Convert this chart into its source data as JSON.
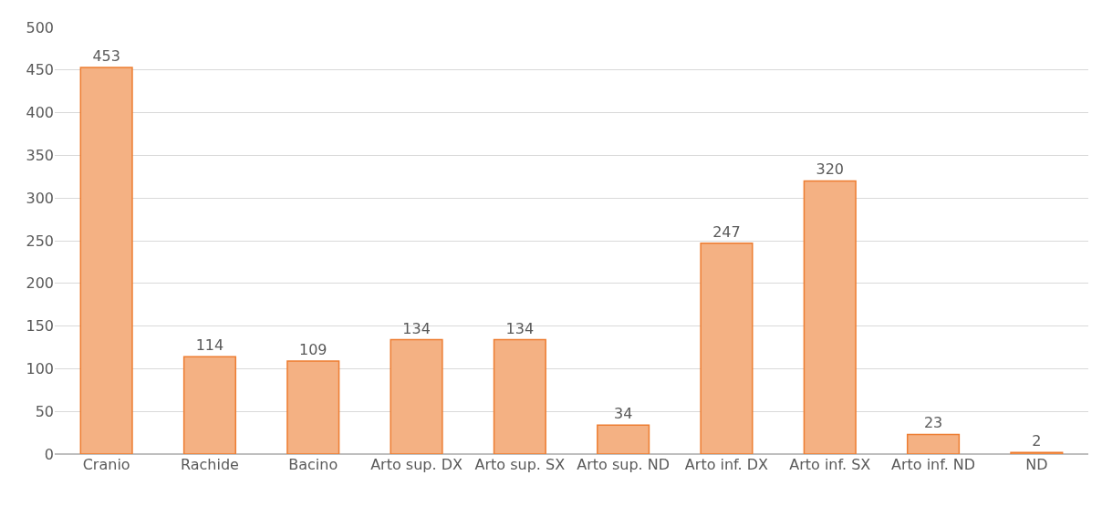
{
  "chart_data": {
    "type": "bar",
    "categories": [
      "Cranio",
      "Rachide",
      "Bacino",
      "Arto sup. DX",
      "Arto sup. SX",
      "Arto sup. ND",
      "Arto inf. DX",
      "Arto inf. SX",
      "Arto inf. ND",
      "ND"
    ],
    "values": [
      453,
      114,
      109,
      134,
      134,
      34,
      247,
      320,
      23,
      2
    ],
    "color": "#f4b183",
    "ylim": [
      0,
      500
    ],
    "yticks": [
      0,
      50,
      100,
      150,
      200,
      250,
      300,
      350,
      400,
      450,
      500
    ],
    "grid": "y",
    "data_labels": true
  }
}
